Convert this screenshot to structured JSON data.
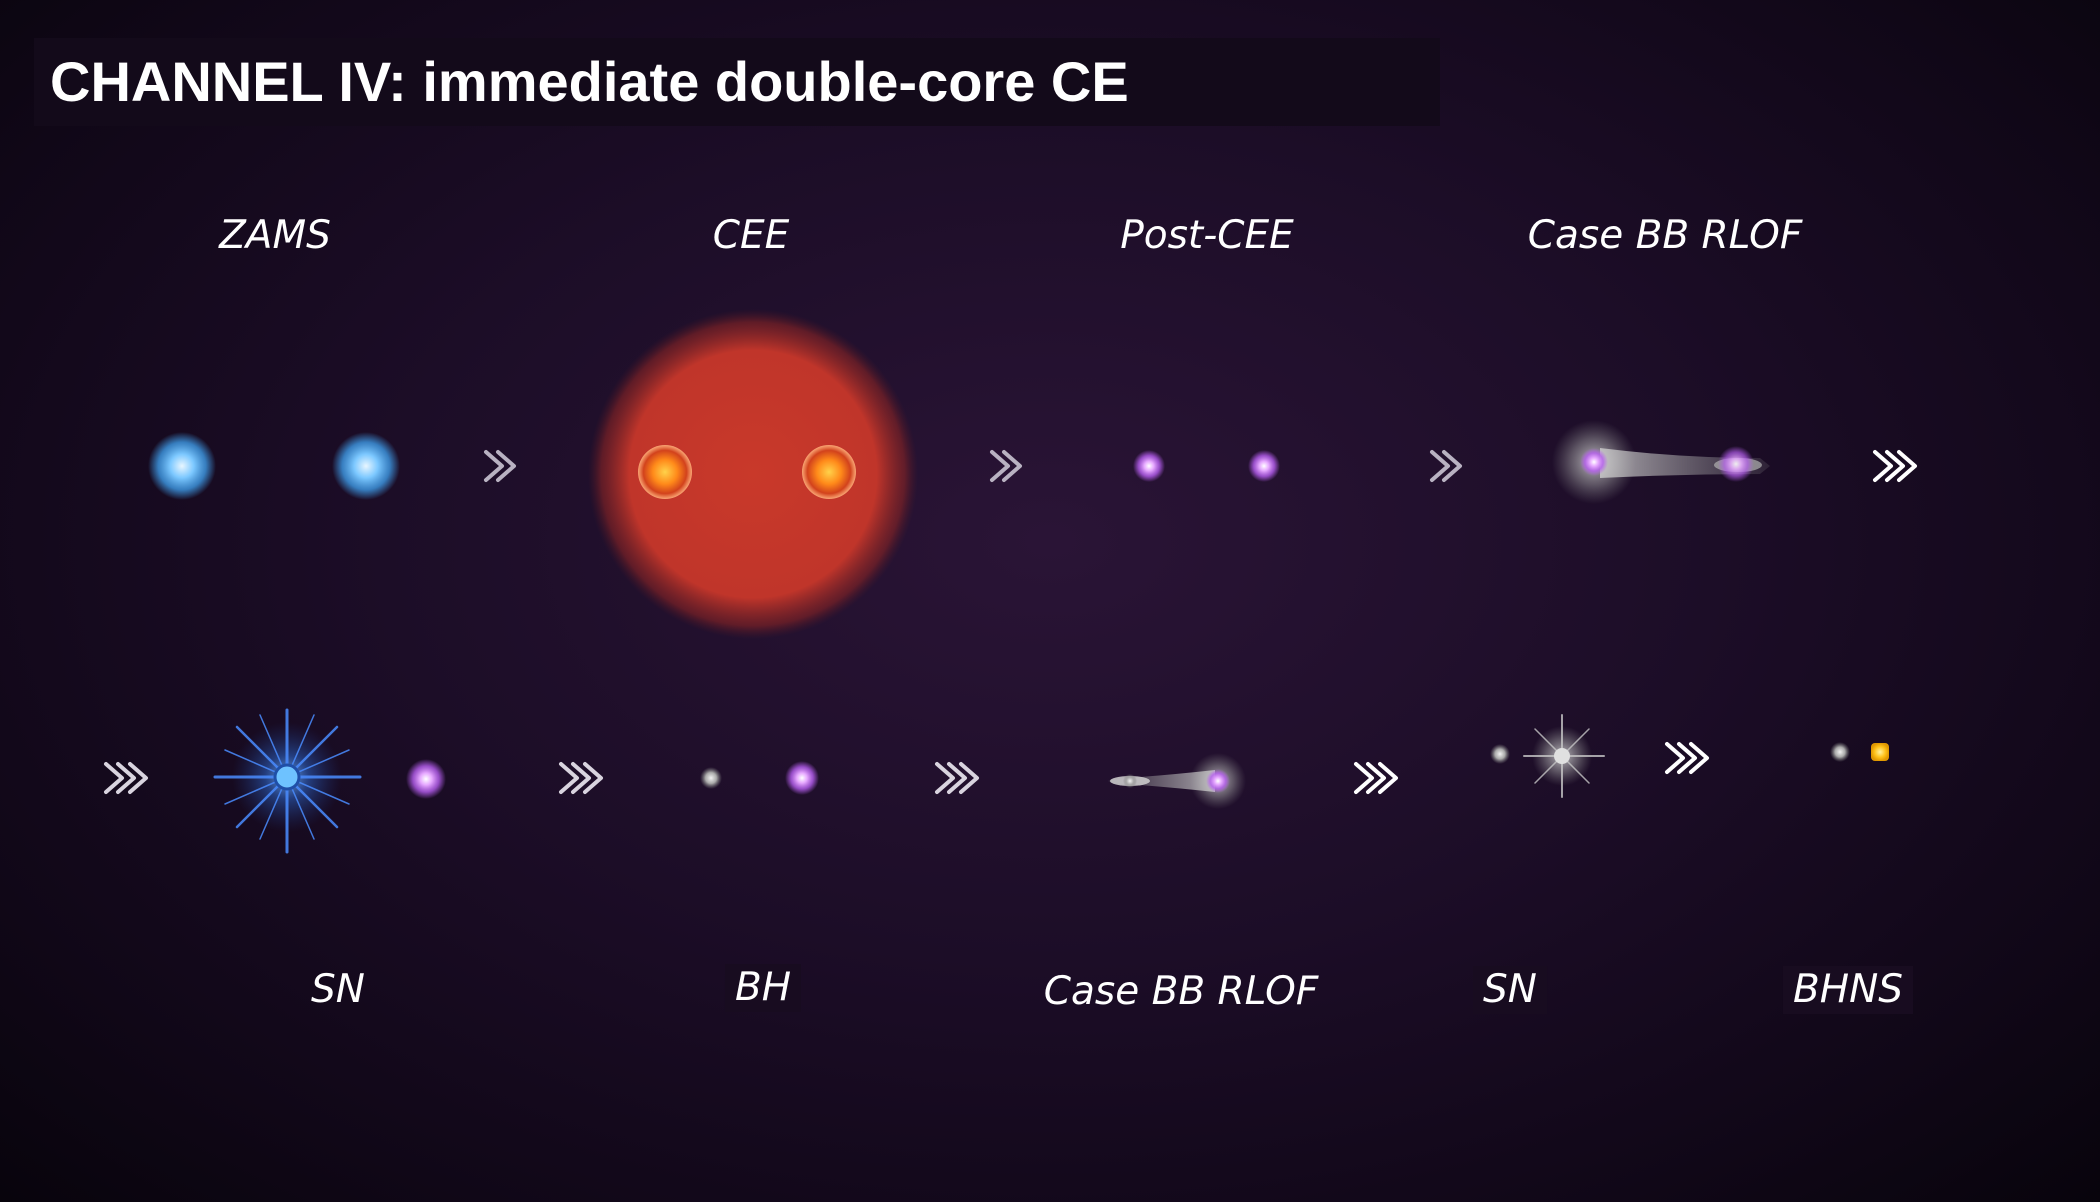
{
  "title": "CHANNEL IV: immediate double-core CE",
  "stages_top": [
    "ZAMS",
    "CEE",
    "Post-CEE",
    "Case BB RLOF"
  ],
  "stages_bottom": [
    "SN",
    "BH",
    "Case BB RLOF",
    "SN",
    "BHNS"
  ],
  "colors": {
    "ms_star": "#6ec2ff",
    "giant_envelope": "#c8382a",
    "giant_core": "#ff8a1a",
    "stripped_star": "#d98cff",
    "black_hole": "#bdbdbd",
    "neutron_star": "#ffc21a",
    "supernova_blue": "#3d8bff",
    "arrow": "#b9b2c2"
  }
}
